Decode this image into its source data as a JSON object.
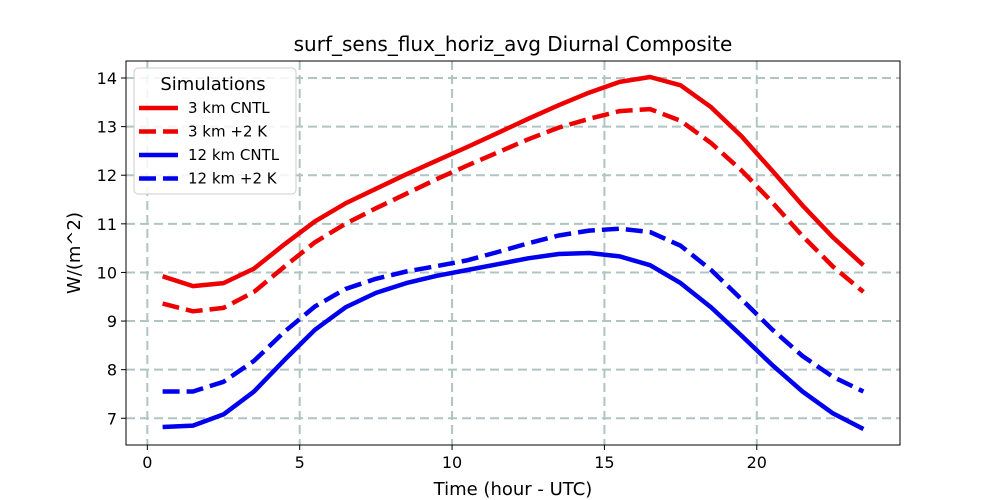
{
  "chart_data": {
    "type": "line",
    "title": "surf_sens_flux_horiz_avg Diurnal Composite",
    "xlabel": "Time (hour - UTC)",
    "ylabel": "W/(m^2)",
    "xlim": [
      -0.7,
      24.7
    ],
    "ylim": [
      6.45,
      14.35
    ],
    "xticks": [
      0,
      5,
      10,
      15,
      20
    ],
    "yticks": [
      7,
      8,
      9,
      10,
      11,
      12,
      13,
      14
    ],
    "grid": true,
    "legend": {
      "title": "Simulations",
      "placement": "top-left"
    },
    "x": [
      0.5,
      1.5,
      2.5,
      3.5,
      4.5,
      5.5,
      6.5,
      7.5,
      8.5,
      9.5,
      10.5,
      11.5,
      12.5,
      13.5,
      14.5,
      15.5,
      16.5,
      17.5,
      18.5,
      19.5,
      20.5,
      21.5,
      22.5,
      23.5
    ],
    "series": [
      {
        "name": "3 km CNTL",
        "color": "#ee0000",
        "dash": "solid",
        "values": [
          9.92,
          9.72,
          9.78,
          10.08,
          10.58,
          11.05,
          11.42,
          11.72,
          12.02,
          12.3,
          12.58,
          12.87,
          13.16,
          13.44,
          13.7,
          13.92,
          14.02,
          13.85,
          13.4,
          12.8,
          12.1,
          11.38,
          10.72,
          10.15
        ]
      },
      {
        "name": "3 km +2 K",
        "color": "#ee0000",
        "dash": "dashed",
        "values": [
          9.36,
          9.2,
          9.27,
          9.6,
          10.12,
          10.62,
          11.0,
          11.32,
          11.62,
          11.92,
          12.2,
          12.47,
          12.74,
          12.98,
          13.16,
          13.32,
          13.36,
          13.12,
          12.66,
          12.1,
          11.45,
          10.75,
          10.12,
          9.6
        ]
      },
      {
        "name": "12 km CNTL",
        "color": "#0000ee",
        "dash": "solid",
        "values": [
          6.82,
          6.85,
          7.08,
          7.55,
          8.2,
          8.82,
          9.28,
          9.58,
          9.78,
          9.93,
          10.05,
          10.17,
          10.29,
          10.38,
          10.4,
          10.33,
          10.15,
          9.78,
          9.28,
          8.7,
          8.1,
          7.55,
          7.1,
          6.78
        ]
      },
      {
        "name": "12 km +2 K",
        "color": "#0000ee",
        "dash": "dashed",
        "values": [
          7.55,
          7.55,
          7.75,
          8.18,
          8.78,
          9.3,
          9.66,
          9.87,
          10.02,
          10.13,
          10.25,
          10.42,
          10.6,
          10.76,
          10.86,
          10.9,
          10.83,
          10.55,
          10.05,
          9.45,
          8.83,
          8.28,
          7.85,
          7.55
        ]
      }
    ]
  }
}
